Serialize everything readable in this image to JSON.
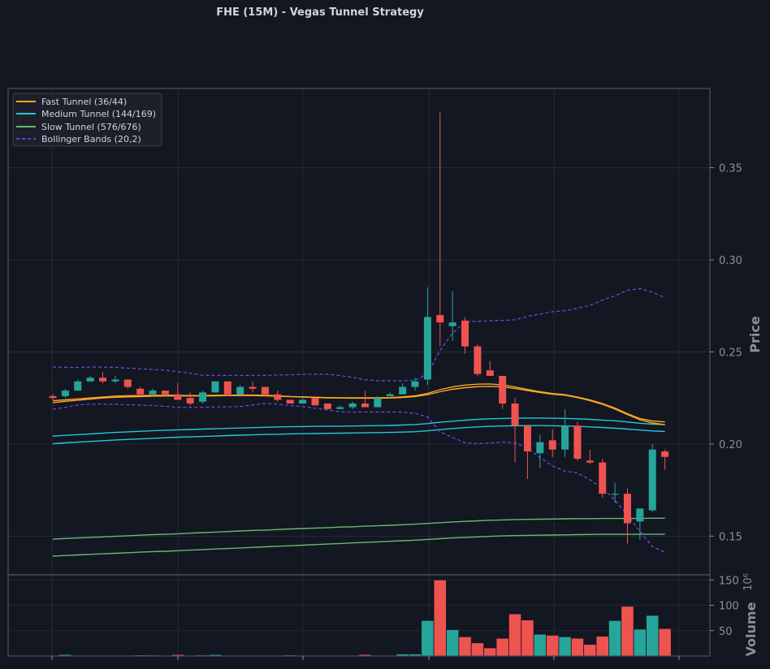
{
  "chart_data": {
    "type": "candlestick",
    "title": "FHE (15M) - Vegas Tunnel Strategy",
    "ylabel": "Price",
    "ylim": [
      0.129,
      0.393
    ],
    "yticks": [
      0.15,
      0.2,
      0.25,
      0.3,
      0.35
    ],
    "ytick_labels": [
      "0.15",
      "0.20",
      "0.25",
      "0.30",
      "0.35"
    ],
    "volume": {
      "ylabel": "Volume",
      "scale_label": "10⁶",
      "ylim": [
        0,
        160
      ],
      "yticks": [
        50,
        100,
        150
      ],
      "ytick_labels": [
        "50",
        "100",
        "150"
      ]
    },
    "colors": {
      "up": "#26a69a",
      "down": "#ef5350",
      "fast": "#ffa726",
      "medium": "#26c6da",
      "slow": "#66bb6a",
      "bollinger": "#7c4dff",
      "grid": "#2a2e39",
      "frame": "#4a4e59",
      "background": "#131722"
    },
    "legend": {
      "position": "top-left",
      "entries": [
        {
          "label": "Fast Tunnel (36/44)",
          "color": "#ffa726",
          "dash": false
        },
        {
          "label": "Medium Tunnel (144/169)",
          "color": "#26c6da",
          "dash": false
        },
        {
          "label": "Slow Tunnel (576/676)",
          "color": "#66bb6a",
          "dash": false
        },
        {
          "label": "Bollinger Bands (20,2)",
          "color": "#7c4dff",
          "dash": true
        }
      ]
    },
    "candles": [
      [
        0.226,
        0.227,
        0.224,
        0.225
      ],
      [
        0.226,
        0.23,
        0.225,
        0.229
      ],
      [
        0.229,
        0.235,
        0.229,
        0.234
      ],
      [
        0.234,
        0.237,
        0.234,
        0.236
      ],
      [
        0.236,
        0.239,
        0.233,
        0.234
      ],
      [
        0.234,
        0.237,
        0.233,
        0.235
      ],
      [
        0.235,
        0.235,
        0.23,
        0.231
      ],
      [
        0.23,
        0.231,
        0.226,
        0.227
      ],
      [
        0.227,
        0.23,
        0.226,
        0.229
      ],
      [
        0.229,
        0.229,
        0.226,
        0.227
      ],
      [
        0.227,
        0.233,
        0.224,
        0.224
      ],
      [
        0.225,
        0.228,
        0.221,
        0.222
      ],
      [
        0.223,
        0.229,
        0.222,
        0.228
      ],
      [
        0.228,
        0.234,
        0.228,
        0.234
      ],
      [
        0.234,
        0.234,
        0.226,
        0.227
      ],
      [
        0.227,
        0.232,
        0.227,
        0.231
      ],
      [
        0.231,
        0.234,
        0.228,
        0.23
      ],
      [
        0.231,
        0.231,
        0.226,
        0.227
      ],
      [
        0.227,
        0.229,
        0.223,
        0.224
      ],
      [
        0.224,
        0.224,
        0.222,
        0.222
      ],
      [
        0.222,
        0.225,
        0.222,
        0.224
      ],
      [
        0.225,
        0.225,
        0.221,
        0.221
      ],
      [
        0.222,
        0.222,
        0.219,
        0.219
      ],
      [
        0.219,
        0.221,
        0.219,
        0.22
      ],
      [
        0.22,
        0.223,
        0.219,
        0.222
      ],
      [
        0.222,
        0.229,
        0.22,
        0.22
      ],
      [
        0.22,
        0.226,
        0.22,
        0.225
      ],
      [
        0.226,
        0.228,
        0.226,
        0.227
      ],
      [
        0.227,
        0.233,
        0.227,
        0.231
      ],
      [
        0.231,
        0.236,
        0.229,
        0.234
      ],
      [
        0.235,
        0.285,
        0.232,
        0.269
      ],
      [
        0.27,
        0.38,
        0.253,
        0.266
      ],
      [
        0.264,
        0.283,
        0.256,
        0.266
      ],
      [
        0.267,
        0.269,
        0.249,
        0.253
      ],
      [
        0.253,
        0.254,
        0.237,
        0.238
      ],
      [
        0.24,
        0.245,
        0.237,
        0.237
      ],
      [
        0.237,
        0.237,
        0.219,
        0.222
      ],
      [
        0.222,
        0.225,
        0.19,
        0.21
      ],
      [
        0.21,
        0.209,
        0.181,
        0.196
      ],
      [
        0.195,
        0.205,
        0.187,
        0.201
      ],
      [
        0.202,
        0.208,
        0.193,
        0.197
      ],
      [
        0.197,
        0.219,
        0.193,
        0.21
      ],
      [
        0.21,
        0.212,
        0.191,
        0.192
      ],
      [
        0.191,
        0.197,
        0.189,
        0.19
      ],
      [
        0.19,
        0.192,
        0.171,
        0.173
      ],
      [
        0.173,
        0.179,
        0.168,
        0.173
      ],
      [
        0.173,
        0.176,
        0.146,
        0.157
      ],
      [
        0.158,
        0.165,
        0.148,
        0.165
      ],
      [
        0.164,
        0.2,
        0.163,
        0.197
      ],
      [
        0.196,
        0.197,
        0.186,
        0.193
      ]
    ],
    "volumes": [
      1,
      3,
      1,
      1,
      1,
      1,
      1,
      2,
      2,
      1,
      3,
      1,
      2,
      3,
      1,
      1,
      1,
      1,
      1,
      2,
      1,
      1,
      0,
      0,
      1,
      3,
      1,
      1,
      4,
      4,
      70,
      150,
      52,
      38,
      26,
      16,
      35,
      83,
      71,
      43,
      41,
      38,
      35,
      23,
      39,
      70,
      98,
      53,
      80,
      54
    ],
    "fast_tunnel": [
      {
        "name": "EMA36",
        "values": [
          0.2235,
          0.224,
          0.2245,
          0.225,
          0.2255,
          0.226,
          0.2262,
          0.2263,
          0.2264,
          0.2265,
          0.2264,
          0.2263,
          0.2263,
          0.2265,
          0.2265,
          0.2266,
          0.2266,
          0.2265,
          0.2262,
          0.2258,
          0.2256,
          0.2254,
          0.2252,
          0.2251,
          0.2251,
          0.2251,
          0.2251,
          0.2252,
          0.2256,
          0.2262,
          0.2275,
          0.2295,
          0.231,
          0.232,
          0.2325,
          0.2326,
          0.2321,
          0.231,
          0.2296,
          0.2284,
          0.2274,
          0.2268,
          0.2255,
          0.224,
          0.222,
          0.2195,
          0.2165,
          0.2138,
          0.2125,
          0.212
        ]
      },
      {
        "name": "EMA44",
        "values": [
          0.2225,
          0.2232,
          0.2238,
          0.2244,
          0.225,
          0.2254,
          0.2256,
          0.2258,
          0.226,
          0.2261,
          0.2261,
          0.2261,
          0.2261,
          0.2262,
          0.2263,
          0.2263,
          0.2263,
          0.2262,
          0.226,
          0.2257,
          0.2255,
          0.2253,
          0.2251,
          0.225,
          0.2249,
          0.2249,
          0.2249,
          0.225,
          0.2253,
          0.2258,
          0.2268,
          0.2284,
          0.2297,
          0.2306,
          0.2311,
          0.2313,
          0.231,
          0.2302,
          0.229,
          0.228,
          0.227,
          0.2265,
          0.2252,
          0.2236,
          0.2216,
          0.219,
          0.216,
          0.2132,
          0.2114,
          0.2105
        ]
      }
    ],
    "medium_tunnel": [
      {
        "name": "EMA144",
        "values": [
          0.2043,
          0.2047,
          0.2051,
          0.2055,
          0.2059,
          0.2063,
          0.2066,
          0.2069,
          0.2072,
          0.2075,
          0.2077,
          0.2079,
          0.2081,
          0.2083,
          0.2085,
          0.2087,
          0.2089,
          0.2091,
          0.2093,
          0.2094,
          0.2095,
          0.2096,
          0.2097,
          0.2097,
          0.2098,
          0.2099,
          0.21,
          0.2101,
          0.2103,
          0.2106,
          0.2111,
          0.2118,
          0.2124,
          0.2129,
          0.2134,
          0.2137,
          0.2139,
          0.214,
          0.2141,
          0.2141,
          0.214,
          0.2139,
          0.2137,
          0.2134,
          0.213,
          0.2126,
          0.212,
          0.2113,
          0.2108,
          0.2105
        ]
      },
      {
        "name": "EMA169",
        "values": [
          0.2002,
          0.2006,
          0.201,
          0.2014,
          0.2018,
          0.2022,
          0.2025,
          0.2028,
          0.2031,
          0.2034,
          0.2037,
          0.2039,
          0.2041,
          0.2043,
          0.2046,
          0.2048,
          0.205,
          0.2052,
          0.2053,
          0.2055,
          0.2056,
          0.2057,
          0.2058,
          0.2059,
          0.206,
          0.2061,
          0.2062,
          0.2063,
          0.2065,
          0.2067,
          0.2072,
          0.2078,
          0.2084,
          0.2089,
          0.2093,
          0.2096,
          0.2098,
          0.2099,
          0.21,
          0.21,
          0.2099,
          0.2098,
          0.2096,
          0.2093,
          0.209,
          0.2086,
          0.2081,
          0.2076,
          0.2071,
          0.2068
        ]
      }
    ],
    "slow_tunnel": [
      {
        "name": "EMA576",
        "values": [
          0.1484,
          0.1487,
          0.149,
          0.1493,
          0.1496,
          0.1499,
          0.1502,
          0.1505,
          0.1508,
          0.151,
          0.1513,
          0.1516,
          0.1519,
          0.1522,
          0.1525,
          0.1528,
          0.1531,
          0.1533,
          0.1536,
          0.1539,
          0.1541,
          0.1544,
          0.1546,
          0.1549,
          0.1551,
          0.1554,
          0.1556,
          0.1559,
          0.1562,
          0.1565,
          0.1569,
          0.1573,
          0.1577,
          0.158,
          0.1583,
          0.1586,
          0.1588,
          0.159,
          0.1591,
          0.1592,
          0.1593,
          0.1594,
          0.1595,
          0.1595,
          0.1596,
          0.1596,
          0.1596,
          0.1596,
          0.1597,
          0.1597
        ]
      },
      {
        "name": "EMA676",
        "values": [
          0.1392,
          0.1395,
          0.1398,
          0.1401,
          0.1404,
          0.1407,
          0.141,
          0.1413,
          0.1416,
          0.1418,
          0.1421,
          0.1424,
          0.1427,
          0.143,
          0.1433,
          0.1436,
          0.1439,
          0.1442,
          0.1445,
          0.1448,
          0.1451,
          0.1454,
          0.1457,
          0.146,
          0.1463,
          0.1466,
          0.1469,
          0.1472,
          0.1475,
          0.1478,
          0.1482,
          0.1486,
          0.149,
          0.1493,
          0.1496,
          0.1499,
          0.1501,
          0.1503,
          0.1504,
          0.1505,
          0.1506,
          0.1507,
          0.1508,
          0.1509,
          0.151,
          0.151,
          0.151,
          0.151,
          0.1511,
          0.1511
        ]
      }
    ],
    "bollinger": [
      {
        "name": "upper",
        "values": [
          0.2418,
          0.2417,
          0.2416,
          0.2418,
          0.2418,
          0.2416,
          0.2412,
          0.2408,
          0.2405,
          0.2401,
          0.2393,
          0.2385,
          0.2373,
          0.2373,
          0.2373,
          0.2373,
          0.2373,
          0.2373,
          0.2374,
          0.2376,
          0.2378,
          0.2379,
          0.2378,
          0.2372,
          0.2362,
          0.2349,
          0.2344,
          0.2343,
          0.2343,
          0.2346,
          0.2382,
          0.2508,
          0.2602,
          0.2663,
          0.2666,
          0.267,
          0.2671,
          0.2675,
          0.2693,
          0.2705,
          0.2718,
          0.2724,
          0.2737,
          0.2753,
          0.2781,
          0.2805,
          0.2835,
          0.2843,
          0.2824,
          0.2795
        ]
      },
      {
        "name": "lower",
        "values": [
          0.2188,
          0.2199,
          0.2212,
          0.2217,
          0.2216,
          0.2216,
          0.2213,
          0.2211,
          0.2209,
          0.2205,
          0.2199,
          0.2199,
          0.22,
          0.2201,
          0.2202,
          0.2203,
          0.2212,
          0.222,
          0.2216,
          0.2209,
          0.2203,
          0.2194,
          0.2185,
          0.2175,
          0.2173,
          0.2174,
          0.2174,
          0.2174,
          0.2173,
          0.2167,
          0.2147,
          0.2066,
          0.2036,
          0.2007,
          0.2002,
          0.2006,
          0.2011,
          0.2006,
          0.1978,
          0.1927,
          0.1881,
          0.1853,
          0.1843,
          0.1806,
          0.176,
          0.1695,
          0.1614,
          0.1525,
          0.1444,
          0.1413
        ]
      }
    ]
  }
}
